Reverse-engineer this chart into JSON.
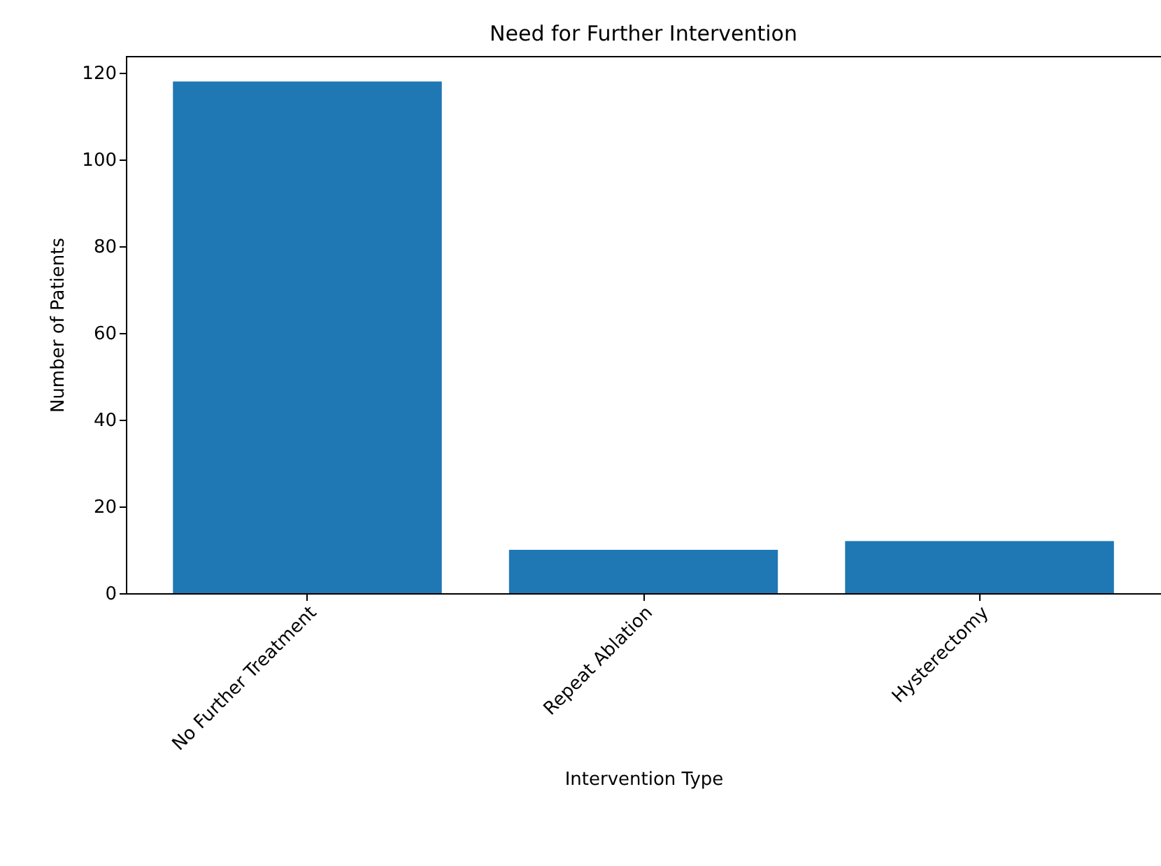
{
  "chart_data": {
    "type": "bar",
    "title": "Need for Further Intervention",
    "xlabel": "Intervention Type",
    "ylabel": "Number of Patients",
    "categories": [
      "No Further Treatment",
      "Repeat Ablation",
      "Hysterectomy"
    ],
    "values": [
      118,
      10,
      12
    ],
    "color": "#1f77b4",
    "ylim": [
      0,
      123.9
    ],
    "yticks": [
      0,
      20,
      40,
      60,
      80,
      100,
      120
    ],
    "grid": false
  }
}
